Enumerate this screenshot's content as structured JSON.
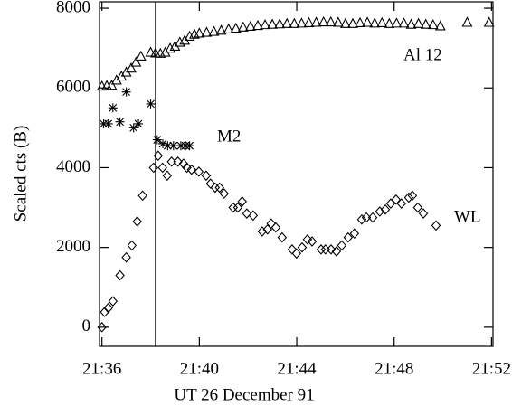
{
  "chart_data": {
    "type": "scatter",
    "x_label": "UT 26 December 91",
    "y_label": "Scaled cts (B)",
    "xlim": [
      35.9,
      52.06
    ],
    "ylim": [
      -480,
      8160
    ],
    "xticks": [
      {
        "value": 36,
        "label": "21:36"
      },
      {
        "value": 40,
        "label": "21:40"
      },
      {
        "value": 44,
        "label": "21:44"
      },
      {
        "value": 48,
        "label": "21:48"
      },
      {
        "value": 52,
        "label": "21:52"
      }
    ],
    "yticks": [
      0,
      2000,
      4000,
      6000,
      8000
    ],
    "vline": 38.2,
    "annotations": [
      "Al 12",
      "M2",
      "WL"
    ],
    "series": [
      {
        "name": "Al 12",
        "marker": "triangle",
        "color": "#000000",
        "x": [
          36.0,
          36.2,
          36.4,
          36.6,
          36.8,
          37.0,
          37.2,
          37.4,
          37.6,
          38.0,
          38.2,
          38.4,
          38.6,
          38.8,
          39.0,
          39.2,
          39.4,
          39.6,
          39.8,
          40.0,
          40.3,
          40.6,
          40.9,
          41.2,
          41.5,
          41.8,
          42.1,
          42.4,
          42.7,
          43.0,
          43.3,
          43.6,
          43.9,
          44.2,
          44.5,
          44.8,
          45.1,
          45.4,
          45.7,
          46.0,
          46.3,
          46.6,
          46.9,
          47.2,
          47.5,
          47.8,
          48.1,
          48.4,
          48.7,
          49.0,
          49.3,
          49.6,
          49.9,
          51.0,
          51.9
        ],
        "values": [
          6050,
          6060,
          6070,
          6200,
          6300,
          6400,
          6500,
          6650,
          6800,
          6900,
          6880,
          6870,
          6900,
          7000,
          7050,
          7150,
          7200,
          7300,
          7350,
          7380,
          7400,
          7420,
          7450,
          7480,
          7500,
          7530,
          7550,
          7570,
          7590,
          7600,
          7610,
          7620,
          7620,
          7630,
          7640,
          7650,
          7660,
          7660,
          7650,
          7620,
          7620,
          7640,
          7650,
          7630,
          7640,
          7620,
          7630,
          7630,
          7600,
          7620,
          7600,
          7590,
          7560,
          7650,
          7650
        ]
      },
      {
        "name": "M2",
        "marker": "asterisk",
        "color": "#000000",
        "x": [
          36.07,
          36.26,
          36.45,
          36.74,
          37.0,
          37.3,
          37.5,
          38.0,
          38.27,
          38.5,
          38.7,
          38.94,
          39.24,
          39.43,
          39.6
        ],
        "values": [
          5100,
          5100,
          5500,
          5150,
          5900,
          5000,
          5100,
          5600,
          4700,
          4600,
          4550,
          4550,
          4550,
          4550,
          4550
        ]
      },
      {
        "name": "WL",
        "marker": "diamond",
        "color": "#000000",
        "x": [
          36.0,
          36.11,
          36.26,
          36.45,
          36.74,
          37.0,
          37.23,
          37.45,
          37.67,
          38.12,
          38.31,
          38.49,
          38.68,
          38.86,
          39.12,
          39.35,
          39.49,
          39.68,
          39.98,
          40.28,
          40.46,
          40.65,
          40.83,
          41.02,
          41.39,
          41.58,
          41.76,
          41.95,
          42.21,
          42.58,
          42.8,
          42.95,
          43.14,
          43.4,
          43.81,
          43.99,
          44.22,
          44.44,
          44.63,
          45.0,
          45.18,
          45.41,
          45.63,
          45.85,
          46.11,
          46.37,
          46.67,
          46.86,
          47.12,
          47.41,
          47.64,
          47.86,
          48.08,
          48.3,
          48.6,
          48.75,
          48.97,
          49.2,
          49.72
        ],
        "values": [
          0,
          380,
          480,
          650,
          1300,
          1750,
          2050,
          2650,
          3300,
          4000,
          4300,
          4000,
          3800,
          4150,
          4150,
          4100,
          4000,
          3950,
          3900,
          3800,
          3600,
          3500,
          3500,
          3350,
          3000,
          3000,
          3150,
          2850,
          2800,
          2400,
          2450,
          2600,
          2500,
          2250,
          1950,
          1850,
          2000,
          2200,
          2150,
          1950,
          1950,
          1950,
          1900,
          2050,
          2250,
          2350,
          2700,
          2750,
          2750,
          2900,
          2950,
          3100,
          3200,
          3100,
          3250,
          3300,
          3000,
          2850,
          2550
        ]
      }
    ]
  }
}
